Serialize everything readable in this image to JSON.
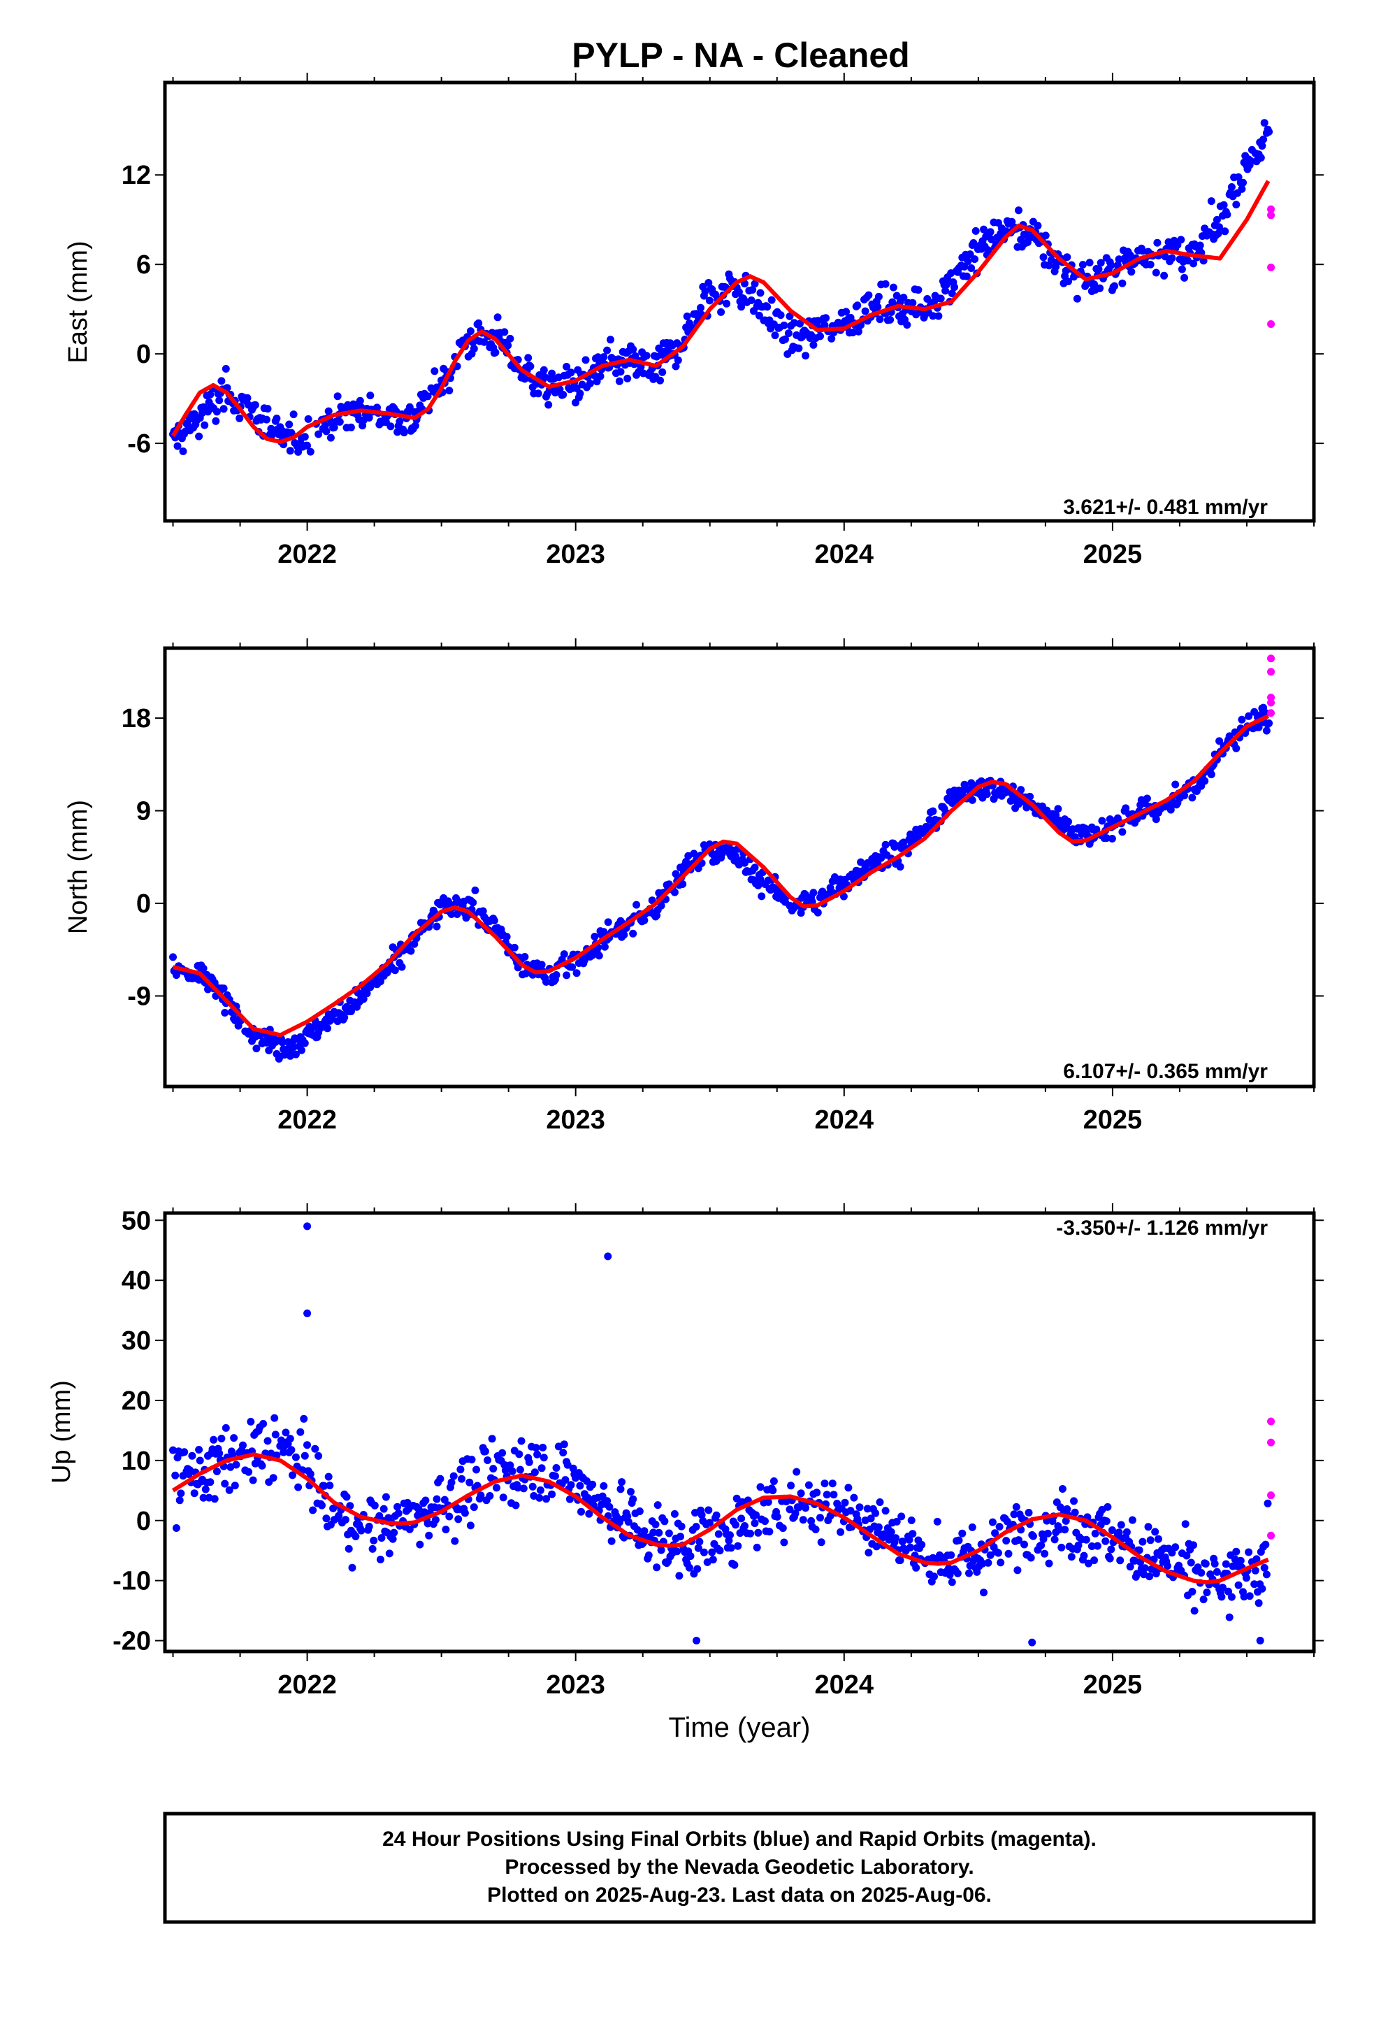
{
  "title": "PYLP  - NA - Cleaned",
  "time_axis_label": "Time (year)",
  "footer": {
    "line1": "24 Hour Positions Using Final Orbits (blue) and Rapid Orbits (magenta).",
    "line2": "Processed by the Nevada Geodetic Laboratory.",
    "line3": "Plotted on 2025-Aug-23. Last data on 2025-Aug-06."
  },
  "colors": {
    "final_orbits": "#0000ff",
    "rapid_orbits": "#ff00ff",
    "model_fit": "#ff0000",
    "frame": "#000000"
  },
  "chart_data": [
    {
      "type": "scatter",
      "panel": "east",
      "ylabel": "East (mm)",
      "xlim": [
        2021.47,
        2025.75
      ],
      "ylim": [
        -11.2,
        18.2
      ],
      "xticks": [
        2022,
        2023,
        2024,
        2025
      ],
      "yticks": [
        -6,
        0,
        6,
        12
      ],
      "rate_label": "3.621+/- 0.481 mm/yr",
      "grid": false,
      "final_orbits_trend": {
        "x": [
          2021.5,
          2021.6,
          2021.7,
          2021.8,
          2021.9,
          2022.0,
          2022.1,
          2022.2,
          2022.3,
          2022.4,
          2022.5,
          2022.6,
          2022.7,
          2022.8,
          2022.9,
          2023.0,
          2023.1,
          2023.2,
          2023.3,
          2023.4,
          2023.5,
          2023.6,
          2023.7,
          2023.8,
          2023.9,
          2024.0,
          2024.1,
          2024.2,
          2024.3,
          2024.4,
          2024.5,
          2024.6,
          2024.7,
          2024.8,
          2024.9,
          2025.0,
          2025.1,
          2025.2,
          2025.3,
          2025.4,
          2025.5,
          2025.58
        ],
        "y": [
          -5.8,
          -4.2,
          -2.5,
          -3.8,
          -5.8,
          -5.5,
          -4.3,
          -3.8,
          -4.2,
          -4.3,
          -2.0,
          1.0,
          1.2,
          -1.0,
          -2.3,
          -2.0,
          -1.0,
          -0.6,
          -1.0,
          1.0,
          4.0,
          4.5,
          3.0,
          1.0,
          1.5,
          2.2,
          3.0,
          3.2,
          3.0,
          5.0,
          7.0,
          8.5,
          8.0,
          6.0,
          4.8,
          5.5,
          6.5,
          7.0,
          6.3,
          8.8,
          12.8,
          14.5
        ]
      },
      "rapid_orbits": {
        "x": [
          2025.59,
          2025.59,
          2025.59,
          2025.59
        ],
        "y": [
          2.0,
          5.8,
          9.3,
          9.7
        ]
      },
      "model_fit": {
        "x": [
          2021.5,
          2021.55,
          2021.6,
          2021.65,
          2021.7,
          2021.75,
          2021.8,
          2021.85,
          2021.9,
          2021.95,
          2022.0,
          2022.1,
          2022.2,
          2022.3,
          2022.4,
          2022.45,
          2022.5,
          2022.55,
          2022.6,
          2022.65,
          2022.7,
          2022.8,
          2022.9,
          2023.0,
          2023.1,
          2023.2,
          2023.3,
          2023.4,
          2023.5,
          2023.6,
          2023.65,
          2023.7,
          2023.8,
          2023.9,
          2024.0,
          2024.1,
          2024.2,
          2024.3,
          2024.4,
          2024.5,
          2024.6,
          2024.65,
          2024.7,
          2024.8,
          2024.9,
          2025.0,
          2025.1,
          2025.2,
          2025.3,
          2025.4,
          2025.5,
          2025.58
        ],
        "y": [
          -5.5,
          -4.0,
          -2.6,
          -2.1,
          -2.6,
          -3.7,
          -4.9,
          -5.7,
          -5.9,
          -5.6,
          -4.9,
          -4.1,
          -3.8,
          -4.0,
          -4.3,
          -3.7,
          -2.3,
          -0.5,
          0.9,
          1.5,
          1.0,
          -1.1,
          -2.2,
          -1.8,
          -0.8,
          -0.4,
          -0.8,
          0.5,
          3.0,
          4.8,
          5.2,
          4.8,
          2.9,
          1.6,
          1.7,
          2.6,
          3.2,
          3.0,
          3.5,
          5.5,
          7.8,
          8.6,
          8.3,
          6.4,
          5.0,
          5.4,
          6.4,
          6.9,
          6.6,
          6.4,
          9.0,
          11.6
        ]
      }
    },
    {
      "type": "scatter",
      "panel": "north",
      "ylabel": "North (mm)",
      "xlim": [
        2021.47,
        2025.75
      ],
      "ylim": [
        -17.8,
        24.8
      ],
      "xticks": [
        2022,
        2023,
        2024,
        2025
      ],
      "yticks": [
        -9,
        0,
        9,
        18
      ],
      "rate_label": "6.107+/- 0.365 mm/yr",
      "grid": false,
      "final_orbits_trend": {
        "x": [
          2021.5,
          2021.6,
          2021.7,
          2021.8,
          2021.9,
          2022.0,
          2022.1,
          2022.2,
          2022.3,
          2022.4,
          2022.5,
          2022.6,
          2022.7,
          2022.8,
          2022.9,
          2023.0,
          2023.1,
          2023.2,
          2023.3,
          2023.4,
          2023.5,
          2023.6,
          2023.7,
          2023.8,
          2023.9,
          2024.0,
          2024.1,
          2024.2,
          2024.3,
          2024.4,
          2024.5,
          2024.6,
          2024.7,
          2024.8,
          2024.9,
          2025.0,
          2025.1,
          2025.2,
          2025.3,
          2025.4,
          2025.5,
          2025.58
        ],
        "y": [
          -6.5,
          -6.8,
          -9.5,
          -12.5,
          -14.0,
          -13.0,
          -11.0,
          -9.0,
          -6.5,
          -3.5,
          -0.5,
          0.0,
          -2.5,
          -6.0,
          -7.0,
          -5.5,
          -3.5,
          -2.0,
          -0.5,
          3.0,
          5.5,
          4.5,
          2.0,
          0.0,
          0.0,
          2.0,
          4.0,
          5.0,
          7.0,
          10.0,
          11.5,
          11.0,
          9.5,
          8.0,
          6.5,
          7.5,
          9.0,
          9.5,
          11.0,
          14.5,
          17.5,
          18.0
        ]
      },
      "rapid_orbits": {
        "x": [
          2025.59,
          2025.59,
          2025.59,
          2025.59,
          2025.59
        ],
        "y": [
          18.5,
          19.5,
          20.0,
          22.5,
          23.8
        ]
      },
      "model_fit": {
        "x": [
          2021.5,
          2021.6,
          2021.7,
          2021.8,
          2021.9,
          2022.0,
          2022.1,
          2022.2,
          2022.3,
          2022.4,
          2022.5,
          2022.55,
          2022.6,
          2022.7,
          2022.8,
          2022.85,
          2022.9,
          2023.0,
          2023.1,
          2023.2,
          2023.3,
          2023.4,
          2023.5,
          2023.55,
          2023.6,
          2023.7,
          2023.8,
          2023.85,
          2023.9,
          2024.0,
          2024.1,
          2024.2,
          2024.3,
          2024.4,
          2024.5,
          2024.55,
          2024.6,
          2024.7,
          2024.8,
          2024.85,
          2024.9,
          2025.0,
          2025.1,
          2025.2,
          2025.3,
          2025.4,
          2025.5,
          2025.58
        ],
        "y": [
          -6.2,
          -6.8,
          -9.5,
          -12.2,
          -12.8,
          -11.5,
          -9.8,
          -8.0,
          -5.8,
          -3.0,
          -0.8,
          -0.4,
          -0.8,
          -3.2,
          -6.0,
          -6.7,
          -6.6,
          -5.3,
          -3.5,
          -1.8,
          0.0,
          2.6,
          5.3,
          6.0,
          5.8,
          3.5,
          0.6,
          -0.3,
          -0.2,
          1.2,
          3.0,
          4.5,
          6.3,
          9.0,
          11.3,
          11.8,
          11.6,
          9.6,
          6.9,
          6.0,
          6.1,
          7.4,
          8.7,
          10.0,
          11.8,
          14.6,
          17.2,
          18.2
        ]
      }
    },
    {
      "type": "scatter",
      "panel": "up",
      "ylabel": "Up (mm)",
      "xlim": [
        2021.47,
        2025.75
      ],
      "ylim": [
        -21.8,
        51.2
      ],
      "xticks": [
        2022,
        2023,
        2024,
        2025
      ],
      "yticks": [
        -20,
        -10,
        0,
        10,
        20,
        30,
        40,
        50
      ],
      "rate_label": "-3.350+/- 1.126 mm/yr",
      "grid": false,
      "final_orbits_trend": {
        "x": [
          2021.5,
          2021.6,
          2021.7,
          2021.8,
          2021.9,
          2022.0,
          2022.1,
          2022.2,
          2022.3,
          2022.4,
          2022.5,
          2022.6,
          2022.7,
          2022.8,
          2022.9,
          2023.0,
          2023.1,
          2023.2,
          2023.3,
          2023.4,
          2023.5,
          2023.6,
          2023.7,
          2023.8,
          2023.9,
          2024.0,
          2024.1,
          2024.2,
          2024.3,
          2024.4,
          2024.5,
          2024.6,
          2024.7,
          2024.8,
          2024.9,
          2025.0,
          2025.1,
          2025.2,
          2025.3,
          2025.4,
          2025.5,
          2025.58
        ],
        "y": [
          6.0,
          8.0,
          10.0,
          11.0,
          12.0,
          9.0,
          1.0,
          -1.0,
          -1.0,
          0.0,
          3.0,
          5.0,
          7.0,
          9.0,
          9.0,
          6.0,
          3.0,
          0.0,
          -3.0,
          -4.0,
          -3.0,
          -1.0,
          1.0,
          3.0,
          3.0,
          2.0,
          0.0,
          -3.0,
          -6.0,
          -7.0,
          -6.0,
          -3.0,
          -1.0,
          0.0,
          -1.0,
          -3.0,
          -5.0,
          -7.0,
          -9.0,
          -11.0,
          -9.0,
          -6.0
        ]
      },
      "outliers": {
        "x": [
          2022.0,
          2022.0,
          2023.12,
          2023.45,
          2024.7,
          2025.55
        ],
        "y": [
          49.0,
          34.5,
          44.0,
          -20.0,
          -20.3,
          -20.0
        ]
      },
      "rapid_orbits": {
        "x": [
          2025.59,
          2025.59,
          2025.59,
          2025.59
        ],
        "y": [
          -2.5,
          4.2,
          13.0,
          16.5
        ]
      },
      "model_fit": {
        "x": [
          2021.5,
          2021.6,
          2021.7,
          2021.8,
          2021.9,
          2022.0,
          2022.1,
          2022.2,
          2022.3,
          2022.35,
          2022.4,
          2022.5,
          2022.6,
          2022.7,
          2022.8,
          2022.9,
          2023.0,
          2023.1,
          2023.2,
          2023.3,
          2023.35,
          2023.4,
          2023.5,
          2023.6,
          2023.7,
          2023.8,
          2023.9,
          2024.0,
          2024.1,
          2024.2,
          2024.3,
          2024.35,
          2024.4,
          2024.5,
          2024.6,
          2024.7,
          2024.8,
          2024.9,
          2025.0,
          2025.1,
          2025.2,
          2025.3,
          2025.35,
          2025.4,
          2025.5,
          2025.58
        ],
        "y": [
          5.0,
          7.8,
          10.0,
          11.0,
          10.0,
          7.0,
          3.0,
          0.6,
          -0.4,
          -0.5,
          -0.3,
          1.5,
          4.2,
          6.5,
          7.5,
          6.5,
          4.0,
          0.5,
          -2.5,
          -4.0,
          -4.2,
          -4.0,
          -1.5,
          1.8,
          3.8,
          4.0,
          2.8,
          0.5,
          -2.5,
          -5.5,
          -7.0,
          -7.2,
          -7.0,
          -5.0,
          -2.0,
          0.2,
          1.0,
          0.0,
          -2.8,
          -6.0,
          -8.5,
          -10.0,
          -10.3,
          -10.0,
          -8.0,
          -6.5
        ]
      }
    }
  ]
}
